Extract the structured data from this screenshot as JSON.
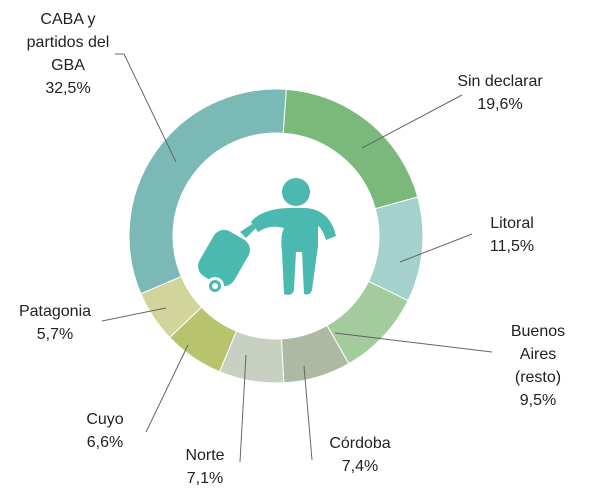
{
  "chart_data": {
    "type": "donut",
    "categories": [
      "Sin declarar",
      "Litoral",
      "Buenos Aires\n(resto)",
      "Córdoba",
      "Norte",
      "Cuyo",
      "Patagonia",
      "CABA y\npartidos del\nGBA"
    ],
    "values": [
      19.6,
      11.5,
      9.5,
      7.4,
      7.1,
      6.6,
      5.7,
      32.5
    ],
    "value_labels": [
      "19,6%",
      "11,5%",
      "9,5%",
      "7,4%",
      "7,1%",
      "6,6%",
      "5,7%",
      "32,5%"
    ],
    "colors": [
      "#7ab87c",
      "#a4d1cb",
      "#a4cb9e",
      "#adb9a3",
      "#c8d0c1",
      "#b8c36e",
      "#d1d59c",
      "#7ab9b6"
    ]
  }
}
